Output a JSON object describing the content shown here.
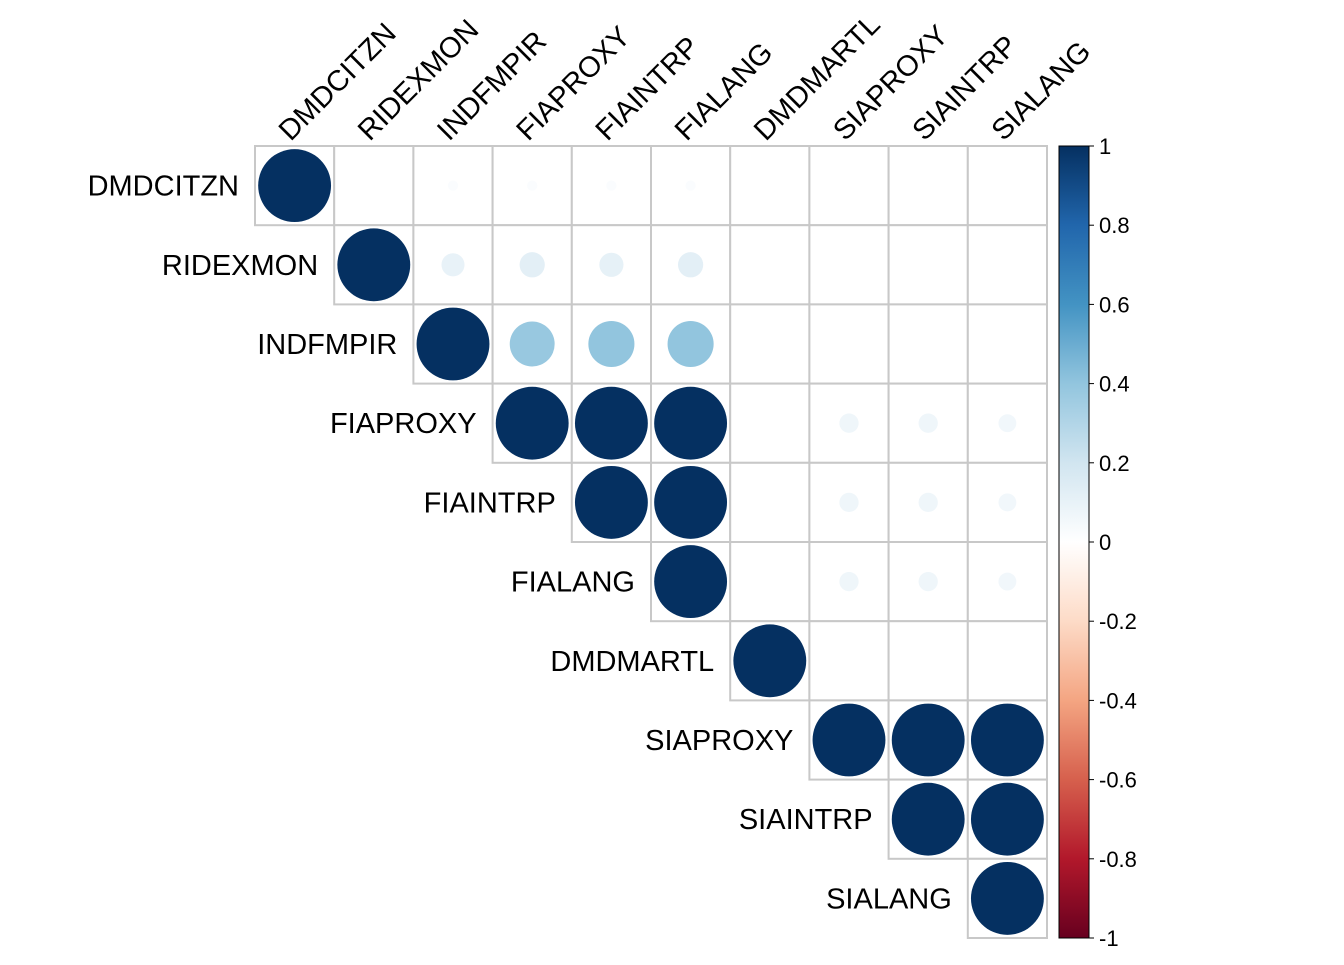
{
  "chart_data": {
    "type": "heatmap",
    "style": "corrplot-upper-circle",
    "variables": [
      "DMDCITZN",
      "RIDEXMON",
      "INDFMPIR",
      "FIAPROXY",
      "FIAINTRP",
      "FIALANG",
      "DMDMARTL",
      "SIAPROXY",
      "SIAINTRP",
      "SIALANG"
    ],
    "matrix": [
      [
        1,
        0,
        0.02,
        0.02,
        0.02,
        0.02,
        0,
        0,
        0,
        0
      ],
      [
        0,
        1,
        0.1,
        0.12,
        0.11,
        0.12,
        0,
        0,
        0,
        0
      ],
      [
        0.02,
        0.1,
        1,
        0.38,
        0.4,
        0.4,
        0,
        0,
        0,
        0
      ],
      [
        0.02,
        0.12,
        0.38,
        1,
        1,
        1,
        0,
        0.07,
        0.07,
        0.06
      ],
      [
        0.02,
        0.11,
        0.4,
        1,
        1,
        1,
        0,
        0.07,
        0.07,
        0.06
      ],
      [
        0.02,
        0.12,
        0.4,
        1,
        1,
        1,
        0,
        0.07,
        0.07,
        0.06
      ],
      [
        0,
        0,
        0,
        0,
        0,
        0,
        1,
        0,
        0,
        0
      ],
      [
        0,
        0,
        0,
        0.07,
        0.07,
        0.07,
        0,
        1,
        1,
        1
      ],
      [
        0,
        0,
        0,
        0.07,
        0.07,
        0.07,
        0,
        1,
        1,
        1
      ],
      [
        0,
        0,
        0,
        0.06,
        0.06,
        0.06,
        0,
        1,
        1,
        1
      ]
    ],
    "color_scale": {
      "range": [
        -1,
        1
      ],
      "ticks": [
        "1",
        "0.8",
        "0.6",
        "0.4",
        "0.2",
        "0",
        "-0.2",
        "-0.4",
        "-0.6",
        "-0.8",
        "-1"
      ],
      "palette": [
        "#67001F",
        "#B2182B",
        "#D6604D",
        "#F4A582",
        "#FDDBC7",
        "#FFFFFF",
        "#D1E5F0",
        "#92C5DE",
        "#4393C3",
        "#2166AC",
        "#053061"
      ]
    },
    "grid": true,
    "legend": "right"
  }
}
